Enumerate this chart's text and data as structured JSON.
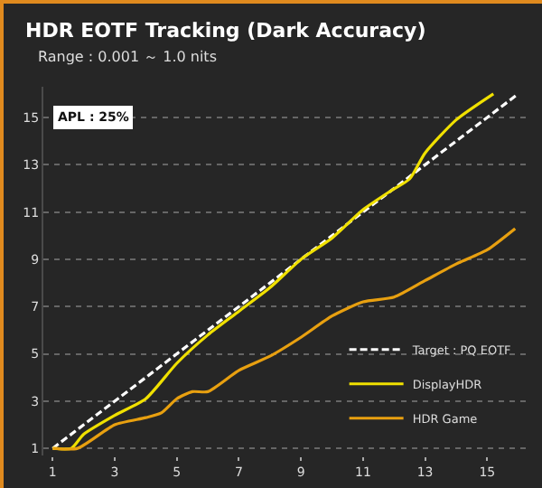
{
  "chart_data": {
    "type": "line",
    "title": "HDR EOTF Tracking (Dark Accuracy)",
    "subtitle": "Range : 0.001 ～ 1.0 nits",
    "annotations": [
      "APL : 25%"
    ],
    "xlim": [
      0.7,
      16.3
    ],
    "xticks": [
      1,
      3,
      5,
      7,
      9,
      11,
      13,
      15
    ],
    "ylim": [
      0.7,
      16.3
    ],
    "yticks": [
      1,
      3,
      5,
      7,
      9,
      11,
      13,
      15
    ],
    "grid": "y",
    "legend": "bottom right",
    "marker": "none",
    "series": [
      {
        "name": "Target : PQ EOTF",
        "color": "#ffffff",
        "line_style": "dashed",
        "x": [
          1,
          16
        ],
        "values": [
          1,
          16
        ]
      },
      {
        "name": "DisplayHDR",
        "color": "#f0e000",
        "line_style": "solid",
        "x": [
          1,
          1.6,
          2,
          3,
          4,
          5,
          6,
          7,
          8,
          9,
          10,
          11,
          11.9,
          12.5,
          13,
          14,
          15.2
        ],
        "values": [
          1,
          1,
          1.6,
          2.4,
          3.1,
          4.6,
          5.8,
          6.8,
          7.8,
          9,
          9.9,
          11.1,
          11.9,
          12.4,
          13.5,
          14.9,
          16
        ]
      },
      {
        "name": "HDR Game",
        "color": "#e8a010",
        "line_style": "solid",
        "x": [
          1,
          1.8,
          3,
          4,
          4.5,
          5,
          5.5,
          6,
          7,
          8,
          9,
          10,
          11,
          12,
          13,
          14,
          15,
          15.9
        ],
        "values": [
          1,
          1,
          2,
          2.3,
          2.5,
          3.1,
          3.4,
          3.4,
          4.3,
          4.9,
          5.7,
          6.6,
          7.2,
          7.4,
          8.1,
          8.8,
          9.4,
          10.3
        ]
      }
    ]
  }
}
